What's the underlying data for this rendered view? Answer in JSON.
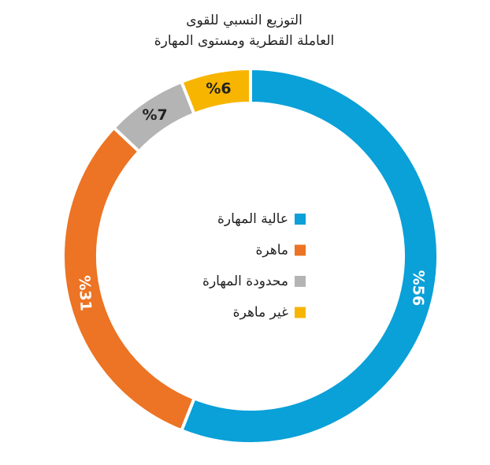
{
  "chart_data": {
    "type": "donut",
    "title": [
      "التوزيع النسبي للقوى",
      "العاملة القطرية ومستوى المهارة"
    ],
    "categories": [
      "عالية المهارة",
      "ماهرة",
      "محدودة المهارة",
      "غير ماهرة"
    ],
    "values": [
      56,
      31,
      7,
      6
    ],
    "value_labels": [
      "%56",
      "%31",
      "%7",
      "%6"
    ],
    "colors": [
      "#0aa0d8",
      "#ec7424",
      "#b4b4b4",
      "#f7b500"
    ],
    "legend": "center"
  }
}
